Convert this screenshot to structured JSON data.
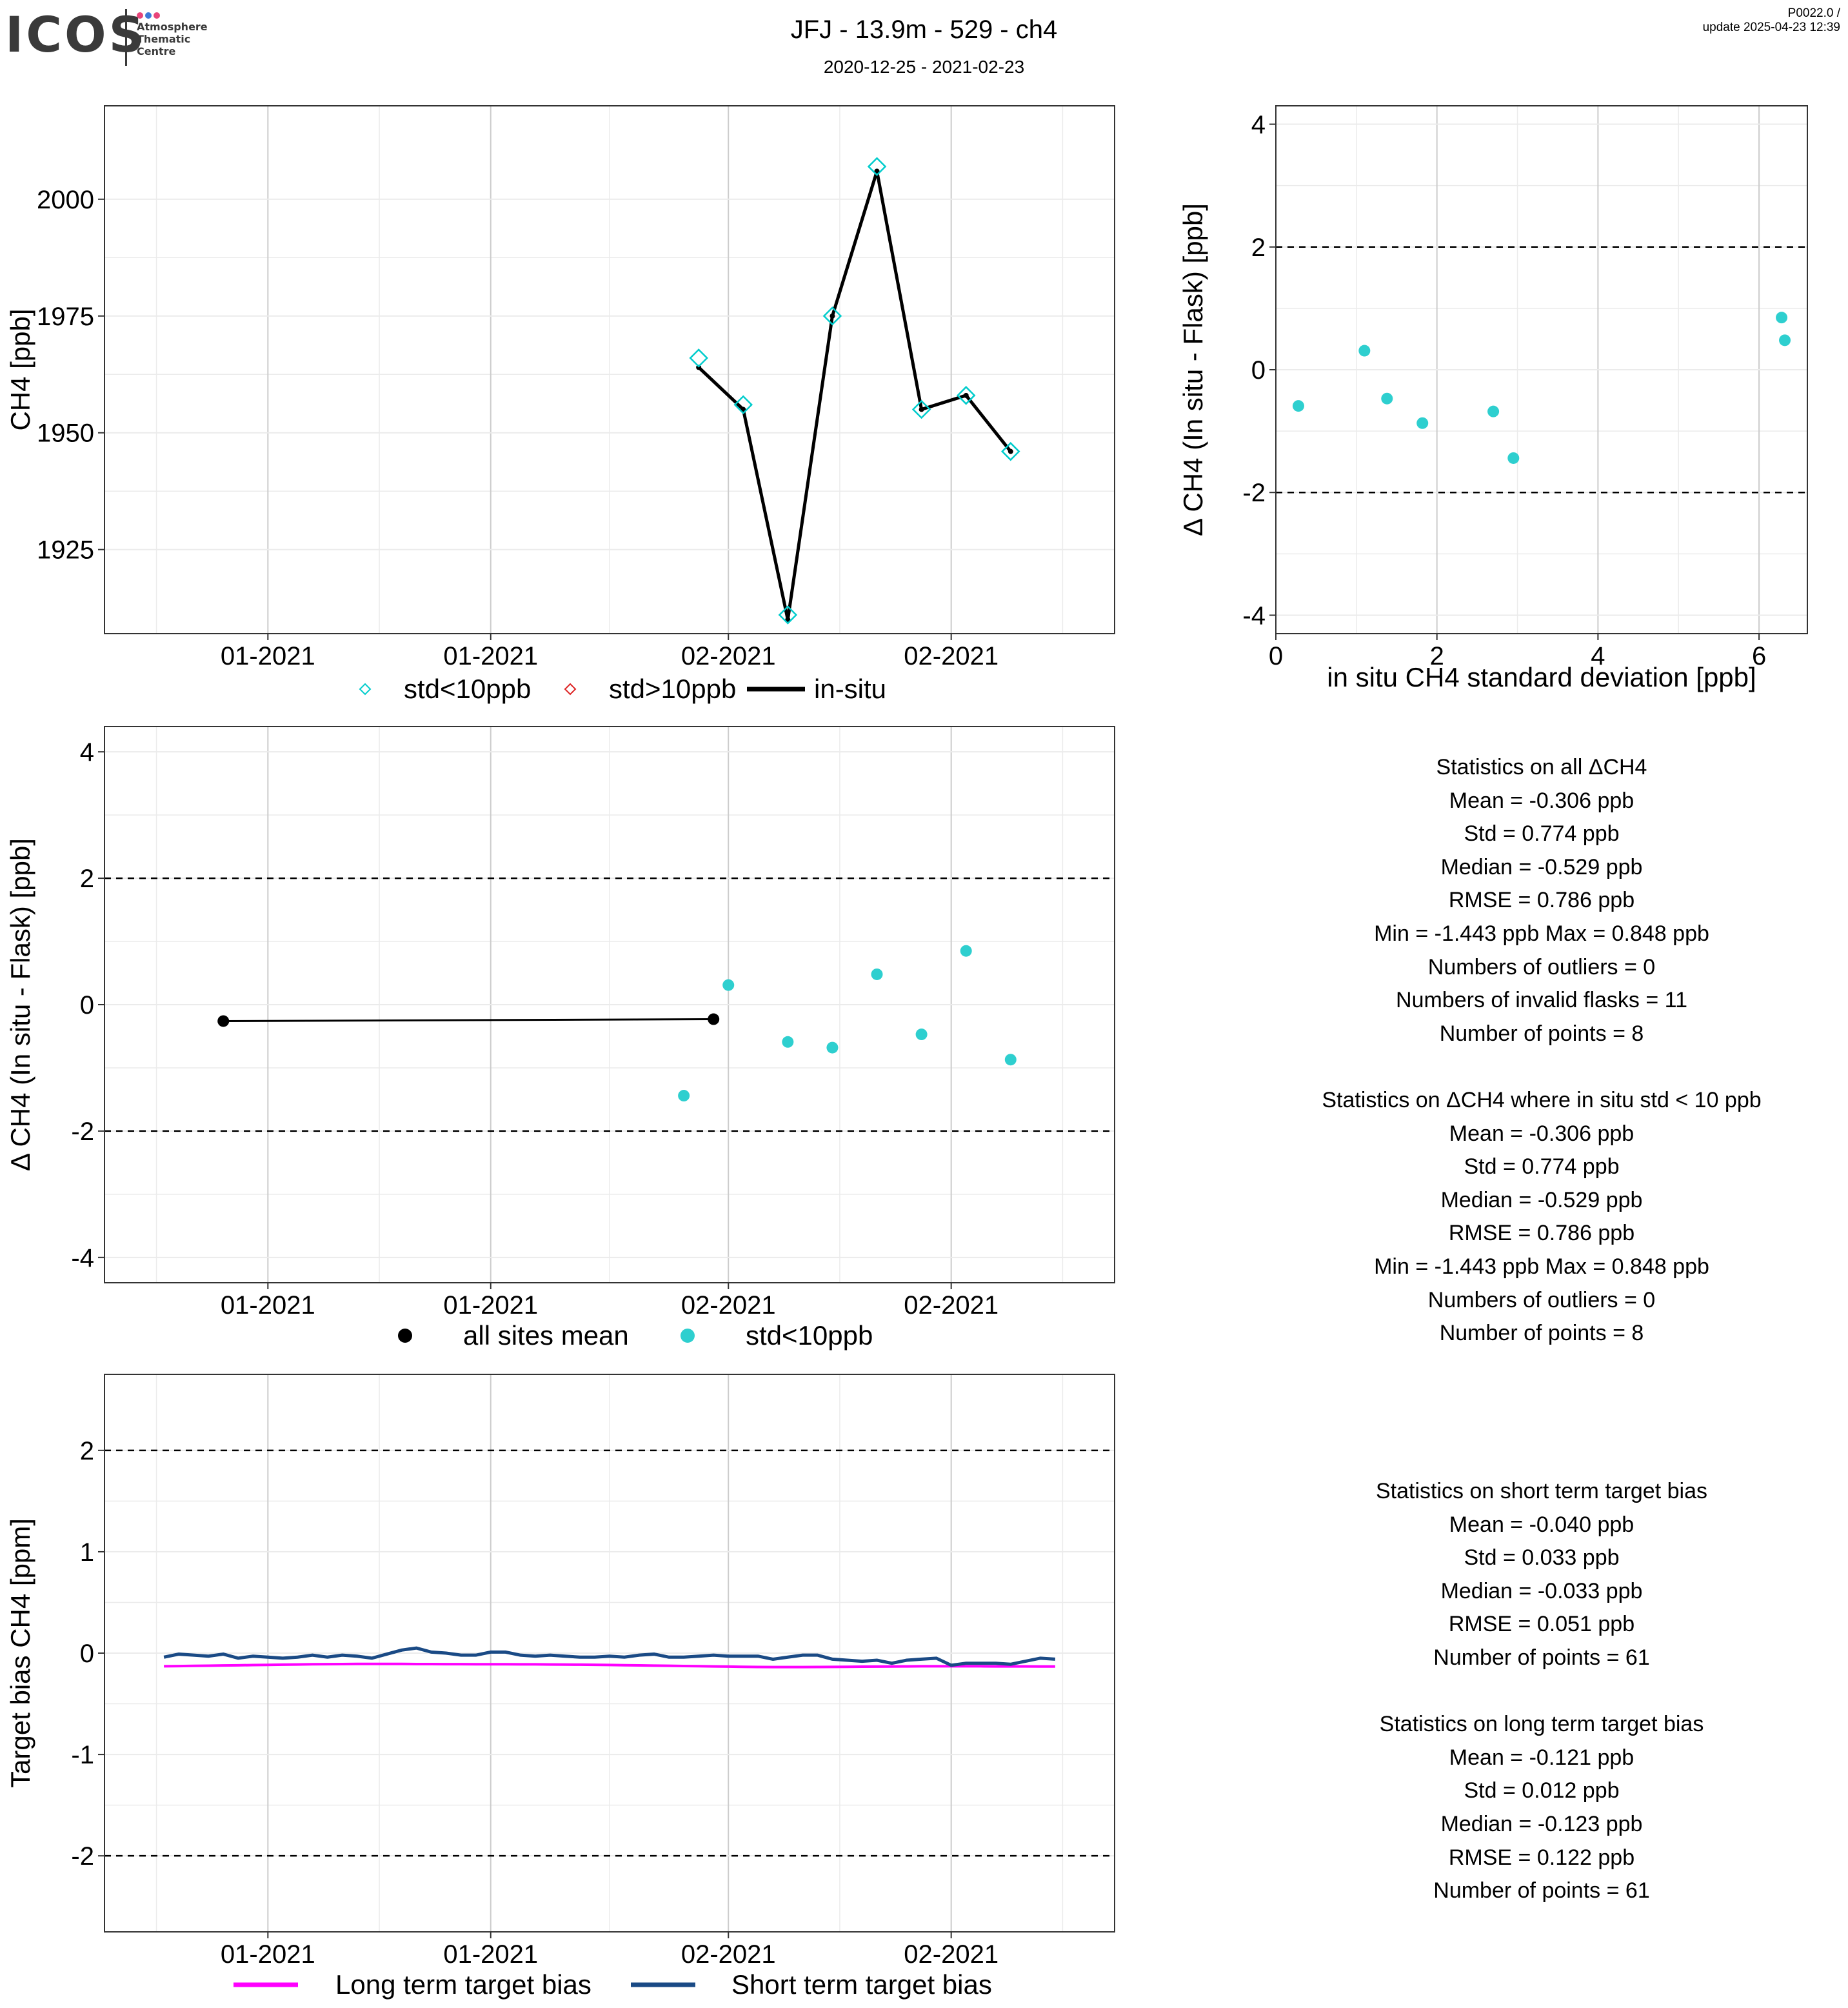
{
  "header": {
    "logo_text": "ICOS",
    "logo_subtitle": [
      "Atmosphere",
      "Thematic",
      "Centre"
    ],
    "logo_dot_colors": [
      "#e8457a",
      "#3d7bd8",
      "#e8457a"
    ],
    "title": "JFJ - 13.9m - 529 - ch4",
    "date_range": "2020-12-25 - 2021-02-23",
    "version": "P0022.0 /",
    "update": "update  2025-04-23 12:39"
  },
  "colors": {
    "cyan": "#00cccc",
    "cyan_marker": "#2ecfcf",
    "red": "#dd2222",
    "black": "#000000",
    "long_term": "#ff00ff",
    "short_term": "#1a4a85",
    "grid": "#ebebeb",
    "grid_major": "#cccccc"
  },
  "chart_data": [
    {
      "id": "ch4-timeseries",
      "type": "line",
      "xlabel": "",
      "ylabel": "CH4 [ppb]",
      "x_tick_labels": [
        "01-2021",
        "01-2021",
        "02-2021",
        "02-2021"
      ],
      "y_ticks": [
        1925,
        1950,
        1975,
        2000
      ],
      "ylim": [
        1907,
        2020
      ],
      "series": [
        {
          "name": "in-situ",
          "style": "line",
          "x": [
            "2021-01-30",
            "2021-02-02",
            "2021-02-05",
            "2021-02-08",
            "2021-02-11",
            "2021-02-14",
            "2021-02-17",
            "2021-02-20"
          ],
          "values": [
            1964,
            1955,
            1910,
            1975,
            2006,
            1955,
            1958,
            1946
          ]
        },
        {
          "name": "std<10ppb",
          "style": "diamond",
          "x": [
            "2021-01-30",
            "2021-02-02",
            "2021-02-05",
            "2021-02-08",
            "2021-02-11",
            "2021-02-14",
            "2021-02-17",
            "2021-02-20"
          ],
          "values": [
            1966,
            1956,
            1911,
            1975,
            2007,
            1955,
            1958,
            1946
          ]
        }
      ],
      "legend": [
        "std<10ppb",
        "std>10ppb",
        "in-situ"
      ],
      "legend_position": "bottom"
    },
    {
      "id": "delta-vs-std",
      "type": "scatter",
      "xlabel": "in situ CH4 standard deviation [ppb]",
      "ylabel": "Δ CH4 (In situ - Flask) [ppb]",
      "x_ticks": [
        0,
        2,
        4,
        6
      ],
      "y_ticks": [
        -4,
        -2,
        0,
        2,
        4
      ],
      "xlim": [
        0,
        6.6
      ],
      "ylim": [
        -4.3,
        4.3
      ],
      "reference_lines": [
        -2,
        2
      ],
      "points": [
        {
          "x": 0.28,
          "y": -0.59
        },
        {
          "x": 1.1,
          "y": 0.31
        },
        {
          "x": 1.38,
          "y": -0.47
        },
        {
          "x": 1.82,
          "y": -0.87
        },
        {
          "x": 2.7,
          "y": -0.68
        },
        {
          "x": 2.95,
          "y": -1.44
        },
        {
          "x": 6.28,
          "y": 0.85
        },
        {
          "x": 6.32,
          "y": 0.48
        }
      ]
    },
    {
      "id": "delta-timeseries",
      "type": "scatter",
      "xlabel": "",
      "ylabel": "Δ CH4 (In situ - Flask) [ppb]",
      "x_tick_labels": [
        "01-2021",
        "01-2021",
        "02-2021",
        "02-2021"
      ],
      "y_ticks": [
        -4,
        -2,
        0,
        2,
        4
      ],
      "ylim": [
        -4.4,
        4.4
      ],
      "reference_lines": [
        -2,
        2
      ],
      "series": [
        {
          "name": "all sites mean",
          "style": "line-points",
          "x": [
            "2020-12-29",
            "2021-01-31"
          ],
          "values": [
            -0.26,
            -0.23
          ]
        },
        {
          "name": "std<10ppb",
          "style": "points",
          "x": [
            "2021-01-29",
            "2021-02-01",
            "2021-02-05",
            "2021-02-08",
            "2021-02-11",
            "2021-02-14",
            "2021-02-17",
            "2021-02-20"
          ],
          "values": [
            -1.44,
            0.31,
            -0.59,
            -0.68,
            0.48,
            -0.47,
            0.85,
            -0.87
          ]
        }
      ],
      "legend": [
        "all sites mean",
        "std<10ppb"
      ],
      "legend_position": "bottom"
    },
    {
      "id": "target-bias",
      "type": "line",
      "xlabel": "",
      "ylabel": "Target bias CH4 [ppm]",
      "x_tick_labels": [
        "01-2021",
        "01-2021",
        "02-2021",
        "02-2021"
      ],
      "y_ticks": [
        -2,
        -1,
        0,
        1,
        2
      ],
      "ylim": [
        -2.75,
        2.75
      ],
      "reference_lines": [
        -2,
        2
      ],
      "x_start": "2020-12-25",
      "x_step_days": 1,
      "series": [
        {
          "name": "Long term target bias",
          "values": [
            -0.13,
            -0.128,
            -0.126,
            -0.124,
            -0.122,
            -0.12,
            -0.118,
            -0.116,
            -0.114,
            -0.112,
            -0.11,
            -0.109,
            -0.108,
            -0.107,
            -0.107,
            -0.107,
            -0.107,
            -0.108,
            -0.108,
            -0.109,
            -0.109,
            -0.11,
            -0.11,
            -0.11,
            -0.111,
            -0.111,
            -0.112,
            -0.113,
            -0.114,
            -0.115,
            -0.117,
            -0.119,
            -0.121,
            -0.123,
            -0.125,
            -0.127,
            -0.129,
            -0.131,
            -0.133,
            -0.135,
            -0.137,
            -0.138,
            -0.138,
            -0.138,
            -0.137,
            -0.136,
            -0.135,
            -0.134,
            -0.133,
            -0.132,
            -0.131,
            -0.13,
            -0.13,
            -0.13,
            -0.13,
            -0.13,
            -0.131,
            -0.131,
            -0.131,
            -0.132,
            -0.132
          ]
        },
        {
          "name": "Short term target bias",
          "values": [
            -0.04,
            -0.01,
            -0.02,
            -0.03,
            -0.01,
            -0.05,
            -0.03,
            -0.04,
            -0.05,
            -0.04,
            -0.02,
            -0.04,
            -0.02,
            -0.03,
            -0.05,
            -0.01,
            0.03,
            0.05,
            0.01,
            0.0,
            -0.02,
            -0.02,
            0.01,
            0.01,
            -0.02,
            -0.03,
            -0.02,
            -0.03,
            -0.04,
            -0.04,
            -0.03,
            -0.04,
            -0.02,
            -0.01,
            -0.04,
            -0.04,
            -0.03,
            -0.02,
            -0.03,
            -0.03,
            -0.03,
            -0.06,
            -0.04,
            -0.02,
            -0.02,
            -0.06,
            -0.07,
            -0.08,
            -0.07,
            -0.1,
            -0.07,
            -0.06,
            -0.05,
            -0.12,
            -0.1,
            -0.1,
            -0.1,
            -0.11,
            -0.08,
            -0.05,
            -0.06
          ]
        }
      ],
      "legend": [
        "Long term target bias",
        "Short term target bias"
      ],
      "legend_position": "bottom"
    }
  ],
  "stats": [
    "Statistics on all ΔCH4",
    "Mean =  -0.306 ppb",
    "Std =  0.774 ppb",
    "Median =  -0.529 ppb",
    "RMSE =  0.786 ppb",
    "Min =  -1.443 ppb Max =  0.848 ppb",
    "Numbers of outliers =  0",
    "Numbers of invalid flasks =  11",
    "Number of points =  8",
    "",
    "Statistics on ΔCH4 where in situ std < 10 ppb",
    "Mean =  -0.306 ppb",
    "Std =  0.774 ppb",
    "Median =  -0.529 ppb",
    "RMSE =  0.786 ppb",
    "Min =  -1.443 ppb Max =  0.848 ppb",
    "Numbers of outliers =  0",
    "Number of points =  8",
    "",
    "",
    "",
    "Statistics on short term target bias",
    "Mean =  -0.040 ppb",
    "Std =  0.033 ppb",
    "Median =  -0.033 ppb",
    "RMSE =  0.051 ppb",
    "Number of points =  61",
    "",
    "Statistics on long term target bias",
    "Mean =  -0.121 ppb",
    "Std =  0.012 ppb",
    "Median =  -0.123 ppb",
    "RMSE =  0.122 ppb",
    "Number of points =  61"
  ]
}
